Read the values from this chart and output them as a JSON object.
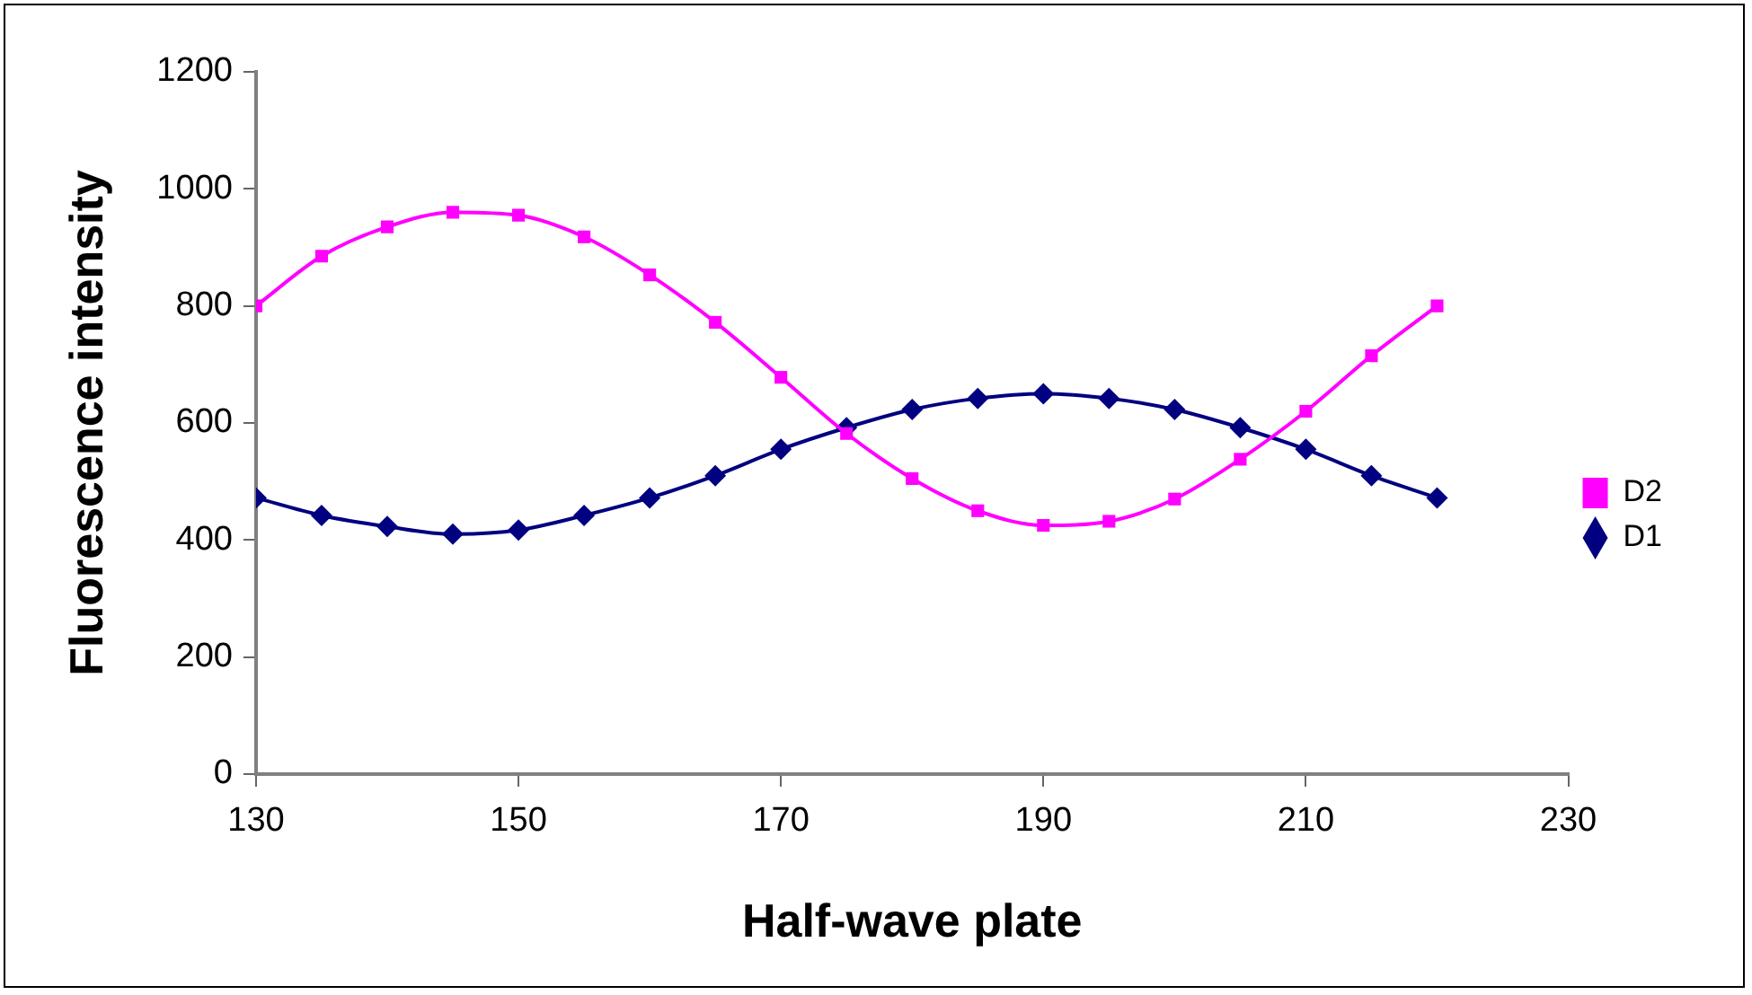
{
  "chart_data": {
    "type": "line",
    "xlabel": "Half-wave plate",
    "ylabel": "Fluorescence intensity",
    "x": [
      130,
      135,
      140,
      145,
      150,
      155,
      160,
      165,
      170,
      175,
      180,
      185,
      190,
      195,
      200,
      205,
      210,
      215,
      220
    ],
    "series": [
      {
        "name": "D1",
        "color": "#000080",
        "marker": "diamond",
        "values": [
          472,
          442,
          423,
          410,
          417,
          442,
          472,
          510,
          555,
          592,
          623,
          642,
          650,
          642,
          623,
          592,
          555,
          510,
          472
        ]
      },
      {
        "name": "D2",
        "color": "#ff00ff",
        "marker": "square",
        "values": [
          800,
          885,
          935,
          960,
          955,
          918,
          853,
          772,
          678,
          582,
          505,
          450,
          425,
          432,
          470,
          538,
          620,
          715,
          800
        ]
      }
    ],
    "xlim": [
      130,
      230
    ],
    "xticks": [
      130,
      150,
      170,
      190,
      210,
      230
    ],
    "ylim": [
      0,
      1200
    ],
    "yticks": [
      0,
      200,
      400,
      600,
      800,
      1000,
      1200
    ],
    "grid": false,
    "legend": "right",
    "line_style": "solid"
  }
}
